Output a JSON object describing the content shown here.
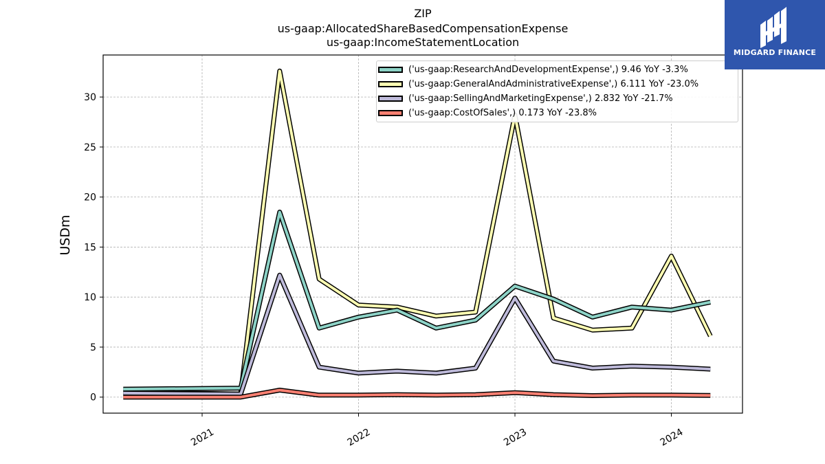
{
  "title": {
    "line1": "ZIP",
    "line2": "us-gaap:AllocatedShareBasedCompensationExpense",
    "line3": "us-gaap:IncomeStatementLocation"
  },
  "logo": {
    "text": "MIDGARD FINANCE",
    "color": "#2f56ad"
  },
  "chart_data": {
    "type": "line",
    "ylabel": "USDm",
    "xlabel": "",
    "ylim": [
      -1.6,
      34.2
    ],
    "xlim": [
      "2020-05-15",
      "2024-06-15"
    ],
    "grid": true,
    "legend_position": "top-right",
    "x": [
      "2020-07-01",
      "2021-04-01",
      "2021-07-01",
      "2021-10-01",
      "2022-01-01",
      "2022-04-01",
      "2022-07-01",
      "2022-10-01",
      "2023-01-01",
      "2023-04-01",
      "2023-07-01",
      "2023-10-01",
      "2024-01-01",
      "2024-04-01"
    ],
    "x_ticks": [
      {
        "label": "2021",
        "date": "2021-01-01"
      },
      {
        "label": "2022",
        "date": "2022-01-01"
      },
      {
        "label": "2023",
        "date": "2023-01-01"
      },
      {
        "label": "2024",
        "date": "2024-01-01"
      }
    ],
    "y_ticks": [
      0,
      5,
      10,
      15,
      20,
      25,
      30
    ],
    "series": [
      {
        "name": "('us-gaap:GeneralAndAdministrativeExpense',) 6.111 YoY -23.0%",
        "color": "#ffffb3",
        "values": [
          0.5,
          0.3,
          32.6,
          11.8,
          9.2,
          9.0,
          8.1,
          8.5,
          28.2,
          7.9,
          6.7,
          6.9,
          14.1,
          6.1
        ]
      },
      {
        "name": "('us-gaap:ResearchAndDevelopmentExpense',) 9.46 YoY -3.3%",
        "color": "#8dd3c7",
        "values": [
          0.8,
          0.9,
          18.5,
          6.9,
          8.0,
          8.7,
          6.9,
          7.7,
          11.1,
          9.8,
          8.0,
          9.0,
          8.7,
          9.5
        ]
      },
      {
        "name": "('us-gaap:SellingAndMarketingExpense',) 2.832 YoY -21.7%",
        "color": "#bebada",
        "values": [
          0.4,
          0.3,
          12.2,
          3.0,
          2.4,
          2.6,
          2.4,
          2.9,
          9.9,
          3.6,
          2.9,
          3.1,
          3.0,
          2.8
        ]
      },
      {
        "name": "('us-gaap:CostOfSales',) 0.173 YoY -23.8%",
        "color": "#fb8072",
        "values": [
          0.0,
          0.0,
          0.7,
          0.2,
          0.2,
          0.25,
          0.2,
          0.25,
          0.45,
          0.25,
          0.15,
          0.2,
          0.2,
          0.17
        ]
      }
    ],
    "legend_order": [
      1,
      0,
      2,
      3
    ]
  }
}
